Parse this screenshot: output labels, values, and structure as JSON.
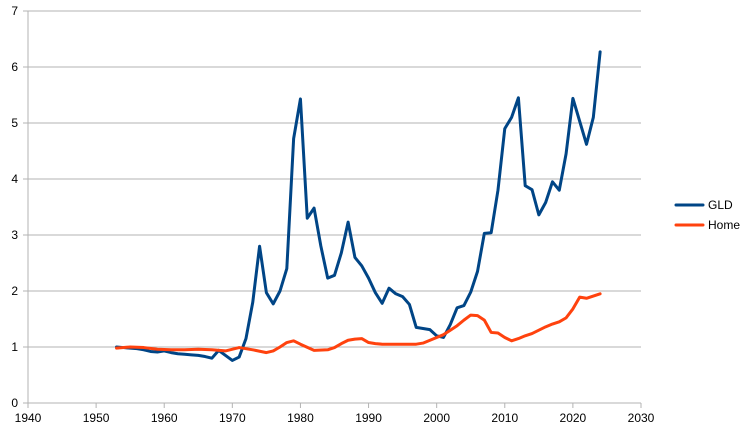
{
  "chart_data": {
    "type": "line",
    "title": "",
    "xlabel": "",
    "ylabel": "",
    "xlim": [
      1940,
      2030
    ],
    "ylim": [
      0,
      7
    ],
    "xticks": [
      1940,
      1950,
      1960,
      1970,
      1980,
      1990,
      2000,
      2010,
      2020,
      2030
    ],
    "yticks": [
      0,
      1,
      2,
      3,
      4,
      5,
      6,
      7
    ],
    "grid": "horizontal",
    "legend_position": "right",
    "series": [
      {
        "name": "GLD",
        "color": "#004586",
        "x": [
          1953,
          1954,
          1955,
          1956,
          1957,
          1958,
          1959,
          1960,
          1961,
          1962,
          1963,
          1964,
          1965,
          1966,
          1967,
          1968,
          1969,
          1970,
          1971,
          1972,
          1973,
          1974,
          1975,
          1976,
          1977,
          1978,
          1979,
          1980,
          1981,
          1982,
          1983,
          1984,
          1985,
          1986,
          1987,
          1988,
          1989,
          1990,
          1991,
          1992,
          1993,
          1994,
          1995,
          1996,
          1997,
          1998,
          1999,
          2000,
          2001,
          2002,
          2003,
          2004,
          2005,
          2006,
          2007,
          2008,
          2009,
          2010,
          2011,
          2012,
          2013,
          2014,
          2015,
          2016,
          2017,
          2018,
          2019,
          2020,
          2021,
          2022,
          2023,
          2024
        ],
        "y": [
          1.0,
          0.99,
          0.98,
          0.97,
          0.95,
          0.92,
          0.91,
          0.93,
          0.9,
          0.88,
          0.87,
          0.86,
          0.85,
          0.83,
          0.8,
          0.94,
          0.85,
          0.76,
          0.82,
          1.15,
          1.8,
          2.8,
          1.97,
          1.77,
          2.0,
          2.4,
          4.72,
          5.43,
          3.3,
          3.48,
          2.8,
          2.23,
          2.28,
          2.68,
          3.23,
          2.6,
          2.45,
          2.23,
          1.97,
          1.78,
          2.05,
          1.95,
          1.9,
          1.76,
          1.35,
          1.33,
          1.31,
          1.2,
          1.17,
          1.4,
          1.7,
          1.74,
          1.98,
          2.35,
          3.03,
          3.04,
          3.8,
          4.9,
          5.1,
          5.45,
          3.88,
          3.81,
          3.36,
          3.58,
          3.95,
          3.8,
          4.45,
          5.44,
          5.03,
          4.62,
          5.1,
          6.27
        ]
      },
      {
        "name": "Home",
        "color": "#ff420e",
        "x": [
          1953,
          1955,
          1957,
          1959,
          1961,
          1963,
          1965,
          1967,
          1969,
          1971,
          1973,
          1975,
          1976,
          1977,
          1978,
          1979,
          1980,
          1982,
          1984,
          1985,
          1986,
          1987,
          1988,
          1989,
          1990,
          1991,
          1992,
          1994,
          1996,
          1997,
          1998,
          2000,
          2001,
          2002,
          2003,
          2004,
          2005,
          2006,
          2007,
          2008,
          2009,
          2010,
          2011,
          2012,
          2013,
          2014,
          2015,
          2016,
          2017,
          2018,
          2019,
          2020,
          2021,
          2022,
          2024
        ],
        "y": [
          0.98,
          1.0,
          0.99,
          0.96,
          0.95,
          0.95,
          0.96,
          0.95,
          0.93,
          0.99,
          0.95,
          0.9,
          0.93,
          1.0,
          1.08,
          1.11,
          1.05,
          0.94,
          0.95,
          0.99,
          1.06,
          1.12,
          1.14,
          1.15,
          1.08,
          1.06,
          1.05,
          1.05,
          1.05,
          1.05,
          1.07,
          1.17,
          1.22,
          1.3,
          1.38,
          1.48,
          1.57,
          1.56,
          1.48,
          1.26,
          1.25,
          1.17,
          1.11,
          1.15,
          1.2,
          1.24,
          1.3,
          1.36,
          1.41,
          1.45,
          1.52,
          1.68,
          1.89,
          1.87,
          1.95
        ]
      }
    ]
  }
}
